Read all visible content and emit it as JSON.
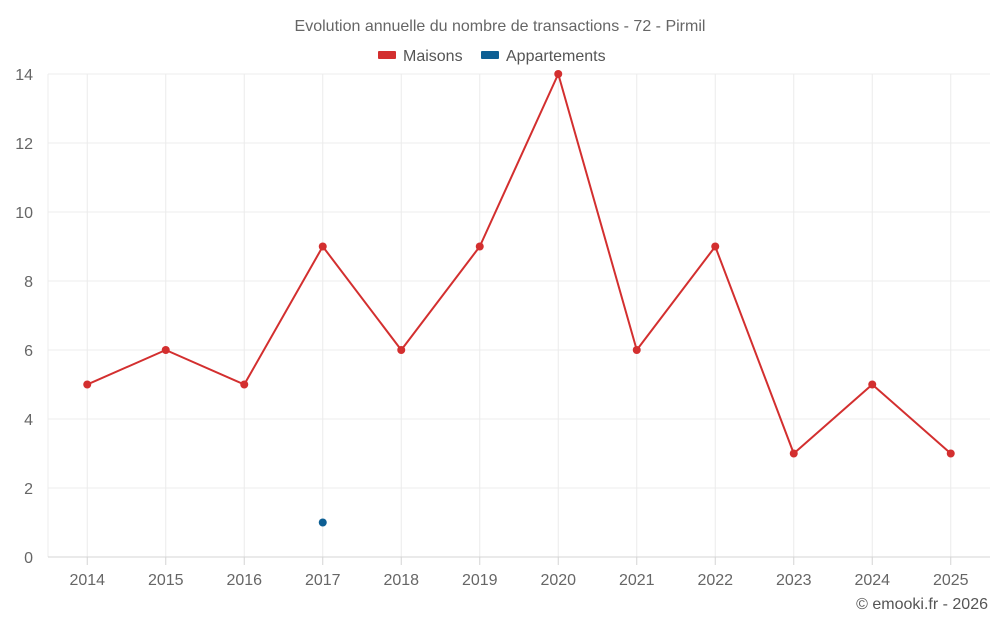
{
  "chart_data": {
    "type": "line",
    "title": "Evolution annuelle du nombre de transactions - 72 - Pirmil",
    "categories": [
      "2014",
      "2015",
      "2016",
      "2017",
      "2018",
      "2019",
      "2020",
      "2021",
      "2022",
      "2023",
      "2024",
      "2025"
    ],
    "series": [
      {
        "name": "Maisons",
        "color": "#d32f2f",
        "values": [
          5,
          6,
          5,
          9,
          6,
          9,
          14,
          6,
          9,
          3,
          5,
          3
        ]
      },
      {
        "name": "Appartements",
        "color": "#0d5f94",
        "values": [
          null,
          null,
          null,
          1,
          null,
          null,
          null,
          null,
          null,
          null,
          null,
          null
        ]
      }
    ],
    "xlabel": "",
    "ylabel": "",
    "ylim": [
      0,
      14
    ],
    "yticks": [
      "0",
      "2",
      "4",
      "6",
      "8",
      "10",
      "12",
      "14"
    ],
    "grid": true,
    "legend": "top-center",
    "credit": "© emooki.fr - 2026"
  }
}
